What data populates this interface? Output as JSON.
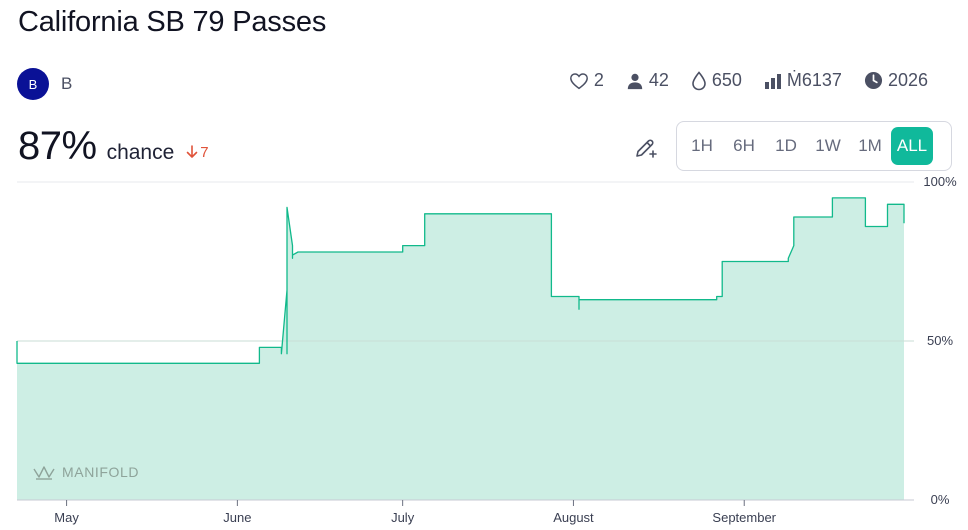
{
  "market": {
    "title": "California SB 79 Passes",
    "creator_initial": "B",
    "creator_name": "B"
  },
  "stats": {
    "likes": "2",
    "traders": "42",
    "liquidity": "650",
    "volume": "Ṁ6137",
    "close_year": "2026",
    "icons": [
      "heart-icon",
      "person-icon",
      "droplet-icon",
      "bar-chart-icon",
      "clock-icon"
    ]
  },
  "probability": {
    "value": "87%",
    "label": "chance",
    "change": "7"
  },
  "time_ranges": [
    "1H",
    "6H",
    "1D",
    "1W",
    "1M",
    "ALL"
  ],
  "selected_range": "ALL",
  "watermark": "MANIFOLD",
  "colors": {
    "line": "#11b98b",
    "fill": "#cdeee4",
    "accent": "#10b99b",
    "down": "#e0533a",
    "avatar": "#0a1196"
  },
  "chart_data": {
    "type": "area",
    "step": true,
    "x_tick_labels": [
      "May",
      "June",
      "July",
      "August",
      "September"
    ],
    "x_tick_dates": [
      "2025-05-01",
      "2025-06-01",
      "2025-07-01",
      "2025-08-01",
      "2025-09-01"
    ],
    "y_tick_labels": [
      "100%",
      "50%",
      "0%"
    ],
    "y_tick_values": [
      100,
      50,
      0
    ],
    "ylim": [
      0,
      100
    ],
    "xlim": [
      "2025-04-22",
      "2025-09-30"
    ],
    "reference_line": 50,
    "series": [
      {
        "values": [
          [
            "2025-04-22",
            50
          ],
          [
            "2025-04-22",
            43
          ],
          [
            "2025-05-05",
            43
          ],
          [
            "2025-05-20",
            43
          ],
          [
            "2025-06-05",
            43
          ],
          [
            "2025-06-05",
            48
          ],
          [
            "2025-06-09",
            48
          ],
          [
            "2025-06-09",
            46
          ],
          [
            "2025-06-10",
            66
          ],
          [
            "2025-06-10",
            46
          ],
          [
            "2025-06-10",
            82
          ],
          [
            "2025-06-10",
            92
          ],
          [
            "2025-06-11",
            80
          ],
          [
            "2025-06-11",
            76
          ],
          [
            "2025-06-11",
            77
          ],
          [
            "2025-06-12",
            78
          ],
          [
            "2025-06-25",
            78
          ],
          [
            "2025-07-01",
            78
          ],
          [
            "2025-07-01",
            80
          ],
          [
            "2025-07-05",
            80
          ],
          [
            "2025-07-05",
            90
          ],
          [
            "2025-07-28",
            90
          ],
          [
            "2025-07-28",
            64
          ],
          [
            "2025-08-02",
            64
          ],
          [
            "2025-08-02",
            60
          ],
          [
            "2025-08-02",
            63
          ],
          [
            "2025-08-27",
            63
          ],
          [
            "2025-08-27",
            64
          ],
          [
            "2025-08-28",
            64
          ],
          [
            "2025-08-28",
            75
          ],
          [
            "2025-09-09",
            75
          ],
          [
            "2025-09-09",
            76
          ],
          [
            "2025-09-10",
            80
          ],
          [
            "2025-09-10",
            89
          ],
          [
            "2025-09-17",
            89
          ],
          [
            "2025-09-17",
            95
          ],
          [
            "2025-09-23",
            95
          ],
          [
            "2025-09-23",
            86
          ],
          [
            "2025-09-27",
            86
          ],
          [
            "2025-09-27",
            93
          ],
          [
            "2025-10-04",
            93
          ],
          [
            "2025-10-04",
            87
          ],
          [
            "2025-10-06",
            87
          ]
        ]
      }
    ]
  }
}
